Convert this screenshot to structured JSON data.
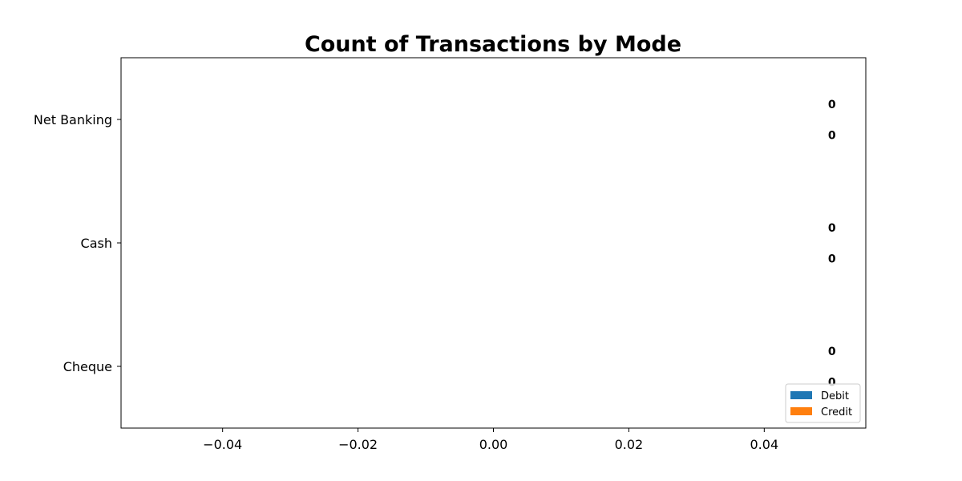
{
  "chart_data": {
    "type": "bar",
    "orientation": "horizontal",
    "title": "Count of Transactions by Mode",
    "xlabel": "",
    "ylabel": "",
    "categories": [
      "Cheque",
      "Cash",
      "Net Banking"
    ],
    "series": [
      {
        "name": "Debit",
        "values": [
          0,
          0,
          0
        ],
        "color": "#1f77b4"
      },
      {
        "name": "Credit",
        "values": [
          0,
          0,
          0
        ],
        "color": "#ff7f0e"
      }
    ],
    "xlim": [
      -0.055,
      0.055
    ],
    "x_ticks": [
      -0.04,
      -0.02,
      0.0,
      0.02,
      0.04
    ],
    "x_tick_labels": [
      "−0.04",
      "−0.02",
      "0.00",
      "0.02",
      "0.04"
    ],
    "data_label_x": 0.05,
    "grid": false,
    "legend": "lower-right"
  }
}
